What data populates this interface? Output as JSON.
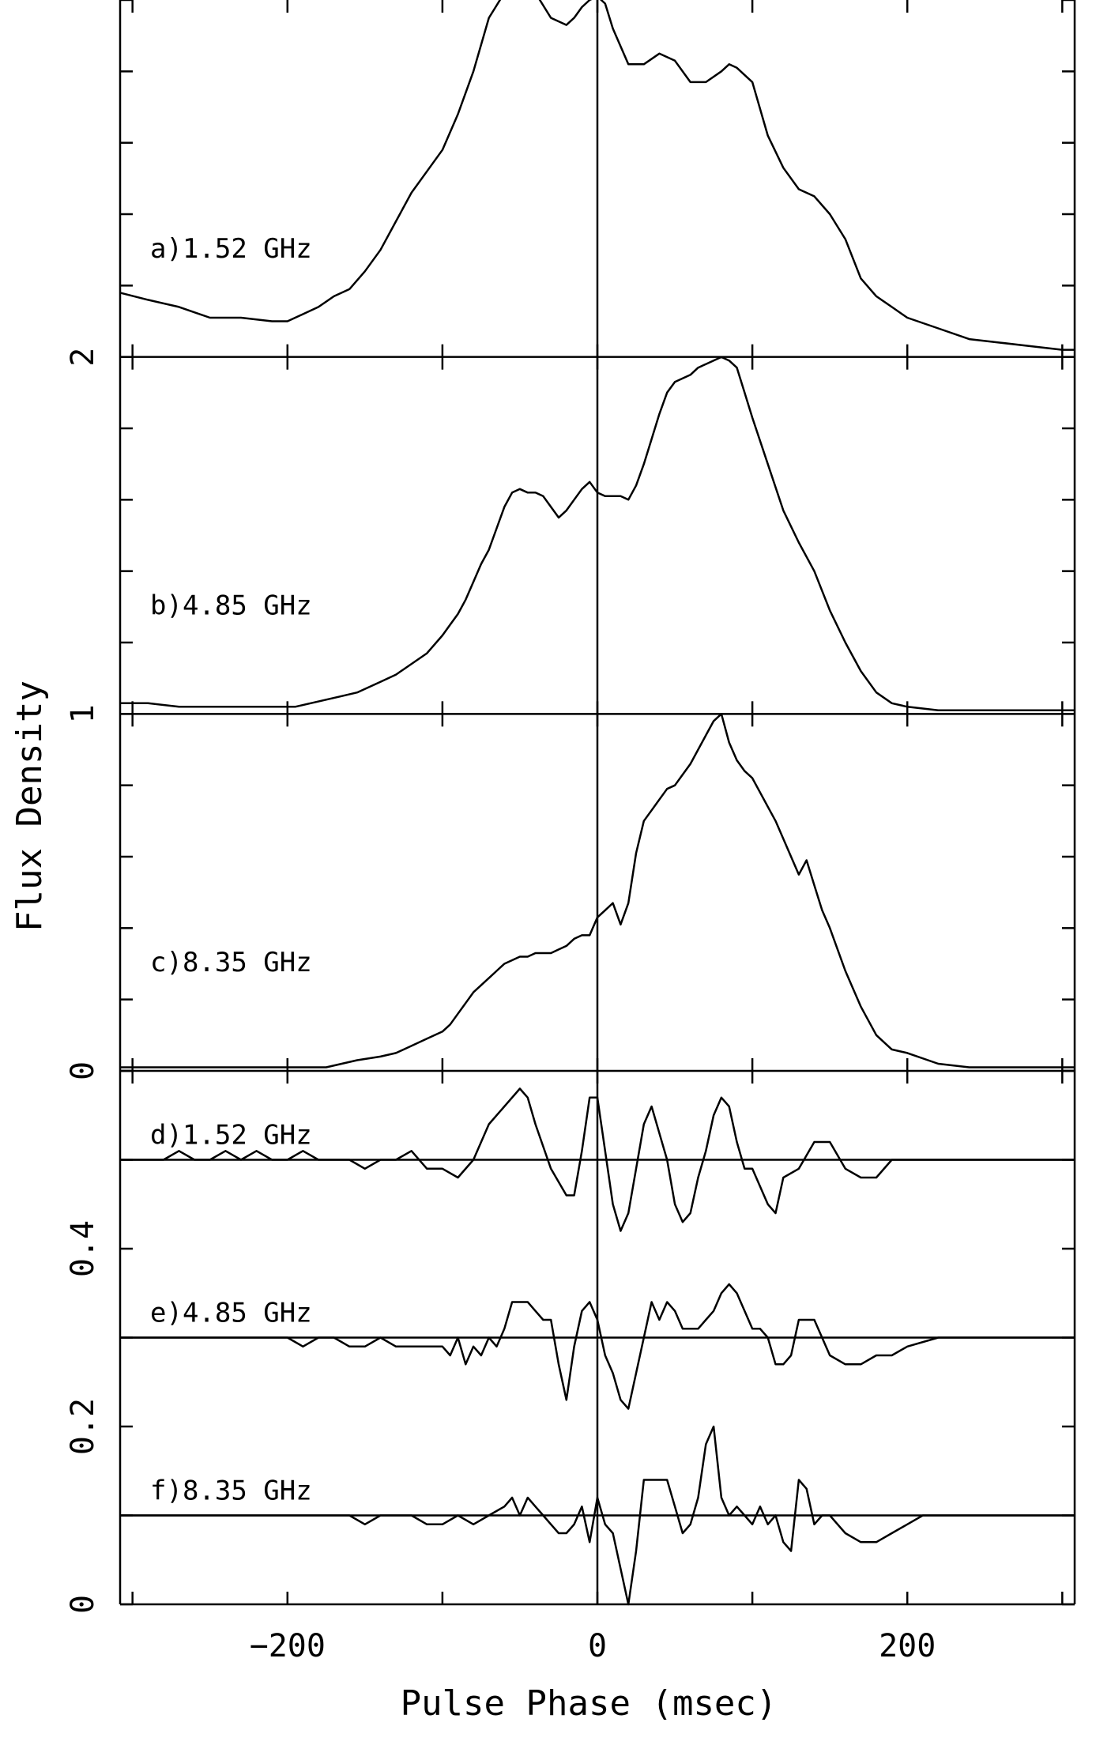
{
  "chart_data": {
    "type": "line",
    "xlabel": "Pulse Phase (msec)",
    "ylabel": "Flux Density",
    "xlim": [
      -308,
      308
    ],
    "x_ticks": [
      -200,
      0,
      200
    ],
    "x_tick_labels": [
      "−200",
      "0",
      "200"
    ],
    "x_minor_step": 100,
    "reference_line_x": 0,
    "upper_ylim": [
      0,
      3
    ],
    "upper_y_ticks": [
      0,
      1,
      2
    ],
    "upper_y_tick_labels": [
      "0",
      "1",
      "2"
    ],
    "lower_ylim": [
      0,
      0.6
    ],
    "lower_y_ticks": [
      0,
      0.2,
      0.4
    ],
    "lower_y_tick_labels": [
      "0",
      "0.2",
      "0.4"
    ],
    "series": [
      {
        "name": "a)1.52 GHz",
        "axis": "upper",
        "baseline": 2,
        "x": [
          -308,
          -290,
          -270,
          -250,
          -230,
          -210,
          -200,
          -190,
          -180,
          -170,
          -160,
          -150,
          -140,
          -130,
          -120,
          -110,
          -100,
          -90,
          -80,
          -70,
          -60,
          -55,
          -50,
          -45,
          -40,
          -30,
          -20,
          -15,
          -10,
          -5,
          0,
          5,
          10,
          20,
          30,
          40,
          50,
          60,
          70,
          80,
          85,
          90,
          100,
          110,
          120,
          130,
          140,
          150,
          160,
          170,
          180,
          190,
          200,
          220,
          240,
          260,
          280,
          300,
          308
        ],
        "y": [
          2.18,
          2.16,
          2.14,
          2.11,
          2.11,
          2.1,
          2.1,
          2.12,
          2.14,
          2.17,
          2.19,
          2.24,
          2.3,
          2.38,
          2.46,
          2.52,
          2.58,
          2.68,
          2.8,
          2.95,
          3.02,
          3.04,
          3.05,
          3.04,
          3.02,
          2.95,
          2.93,
          2.95,
          2.98,
          3.0,
          3.01,
          2.99,
          2.92,
          2.82,
          2.82,
          2.85,
          2.83,
          2.77,
          2.77,
          2.8,
          2.82,
          2.81,
          2.77,
          2.62,
          2.53,
          2.47,
          2.45,
          2.4,
          2.33,
          2.22,
          2.17,
          2.14,
          2.11,
          2.08,
          2.05,
          2.04,
          2.03,
          2.02,
          2.02
        ]
      },
      {
        "name": "b)4.85 GHz",
        "axis": "upper",
        "baseline": 1,
        "x": [
          -308,
          -290,
          -270,
          -250,
          -230,
          -210,
          -195,
          -185,
          -175,
          -165,
          -155,
          -140,
          -130,
          -120,
          -110,
          -100,
          -95,
          -90,
          -85,
          -80,
          -75,
          -70,
          -65,
          -60,
          -55,
          -50,
          -45,
          -40,
          -35,
          -30,
          -25,
          -20,
          -15,
          -10,
          -5,
          0,
          5,
          10,
          15,
          20,
          25,
          30,
          35,
          40,
          45,
          50,
          55,
          60,
          65,
          70,
          75,
          80,
          85,
          90,
          95,
          100,
          110,
          120,
          130,
          140,
          150,
          160,
          170,
          180,
          190,
          200,
          220,
          240,
          260,
          280,
          300,
          308
        ],
        "y": [
          1.03,
          1.03,
          1.02,
          1.02,
          1.02,
          1.02,
          1.02,
          1.03,
          1.04,
          1.05,
          1.06,
          1.09,
          1.11,
          1.14,
          1.17,
          1.22,
          1.25,
          1.28,
          1.32,
          1.37,
          1.42,
          1.46,
          1.52,
          1.58,
          1.62,
          1.63,
          1.62,
          1.62,
          1.61,
          1.58,
          1.55,
          1.57,
          1.6,
          1.63,
          1.65,
          1.62,
          1.61,
          1.61,
          1.61,
          1.6,
          1.64,
          1.7,
          1.77,
          1.84,
          1.9,
          1.93,
          1.94,
          1.95,
          1.97,
          1.98,
          1.99,
          2.0,
          1.99,
          1.97,
          1.9,
          1.83,
          1.7,
          1.57,
          1.48,
          1.4,
          1.29,
          1.2,
          1.12,
          1.06,
          1.03,
          1.02,
          1.01,
          1.01,
          1.01,
          1.01,
          1.01,
          1.01
        ]
      },
      {
        "name": "c)8.35 GHz",
        "axis": "upper",
        "baseline": 0,
        "x": [
          -308,
          -290,
          -270,
          -250,
          -230,
          -210,
          -195,
          -185,
          -175,
          -165,
          -155,
          -140,
          -130,
          -120,
          -110,
          -100,
          -95,
          -90,
          -85,
          -80,
          -75,
          -70,
          -65,
          -60,
          -55,
          -50,
          -45,
          -40,
          -35,
          -30,
          -25,
          -20,
          -15,
          -10,
          -5,
          0,
          5,
          10,
          15,
          20,
          25,
          30,
          35,
          40,
          45,
          50,
          55,
          60,
          65,
          70,
          75,
          80,
          85,
          90,
          95,
          100,
          105,
          110,
          115,
          120,
          125,
          130,
          135,
          140,
          145,
          150,
          155,
          160,
          165,
          170,
          180,
          190,
          200,
          220,
          240,
          260,
          280,
          300,
          308
        ],
        "y": [
          0.01,
          0.01,
          0.01,
          0.01,
          0.01,
          0.01,
          0.01,
          0.01,
          0.01,
          0.02,
          0.03,
          0.04,
          0.05,
          0.07,
          0.09,
          0.11,
          0.13,
          0.16,
          0.19,
          0.22,
          0.24,
          0.26,
          0.28,
          0.3,
          0.31,
          0.32,
          0.32,
          0.33,
          0.33,
          0.33,
          0.34,
          0.35,
          0.37,
          0.38,
          0.38,
          0.43,
          0.45,
          0.47,
          0.41,
          0.47,
          0.61,
          0.7,
          0.73,
          0.76,
          0.79,
          0.8,
          0.83,
          0.86,
          0.9,
          0.94,
          0.98,
          1.0,
          0.92,
          0.87,
          0.84,
          0.82,
          0.78,
          0.74,
          0.7,
          0.65,
          0.6,
          0.55,
          0.59,
          0.52,
          0.45,
          0.4,
          0.34,
          0.28,
          0.23,
          0.18,
          0.1,
          0.06,
          0.05,
          0.02,
          0.01,
          0.01,
          0.01,
          0.01,
          0.01
        ]
      },
      {
        "name": "d)1.52 GHz",
        "axis": "lower",
        "baseline": 0.5,
        "x": [
          -308,
          -300,
          -290,
          -280,
          -270,
          -260,
          -250,
          -240,
          -230,
          -220,
          -210,
          -200,
          -190,
          -180,
          -170,
          -160,
          -150,
          -140,
          -130,
          -120,
          -110,
          -100,
          -90,
          -80,
          -70,
          -60,
          -50,
          -45,
          -40,
          -30,
          -20,
          -15,
          -10,
          -5,
          0,
          5,
          10,
          15,
          20,
          25,
          30,
          35,
          40,
          45,
          50,
          55,
          60,
          65,
          70,
          75,
          80,
          85,
          90,
          95,
          100,
          105,
          110,
          115,
          120,
          130,
          140,
          150,
          160,
          170,
          180,
          190,
          200,
          210,
          220,
          240,
          260,
          280,
          300,
          308
        ],
        "y": [
          0.5,
          0.5,
          0.5,
          0.5,
          0.51,
          0.5,
          0.5,
          0.51,
          0.5,
          0.51,
          0.5,
          0.5,
          0.51,
          0.5,
          0.5,
          0.5,
          0.49,
          0.5,
          0.5,
          0.51,
          0.49,
          0.49,
          0.48,
          0.5,
          0.54,
          0.56,
          0.58,
          0.57,
          0.54,
          0.49,
          0.46,
          0.46,
          0.51,
          0.57,
          0.57,
          0.51,
          0.45,
          0.42,
          0.44,
          0.49,
          0.54,
          0.56,
          0.53,
          0.5,
          0.45,
          0.43,
          0.44,
          0.48,
          0.51,
          0.55,
          0.57,
          0.56,
          0.52,
          0.49,
          0.49,
          0.47,
          0.45,
          0.44,
          0.48,
          0.49,
          0.52,
          0.52,
          0.49,
          0.48,
          0.48,
          0.5,
          0.5,
          0.5,
          0.5,
          0.5,
          0.5,
          0.5,
          0.5,
          0.5
        ]
      },
      {
        "name": "e)4.85 GHz",
        "axis": "lower",
        "baseline": 0.3,
        "x": [
          -308,
          -300,
          -290,
          -280,
          -270,
          -260,
          -250,
          -240,
          -230,
          -220,
          -210,
          -200,
          -190,
          -180,
          -170,
          -160,
          -150,
          -140,
          -130,
          -120,
          -110,
          -100,
          -95,
          -90,
          -85,
          -80,
          -75,
          -70,
          -65,
          -60,
          -55,
          -50,
          -45,
          -40,
          -35,
          -30,
          -25,
          -20,
          -15,
          -10,
          -5,
          0,
          5,
          10,
          15,
          20,
          25,
          30,
          35,
          40,
          45,
          50,
          55,
          60,
          65,
          70,
          75,
          80,
          85,
          90,
          95,
          100,
          105,
          110,
          115,
          120,
          125,
          130,
          135,
          140,
          150,
          160,
          170,
          180,
          190,
          200,
          220,
          240,
          260,
          280,
          300,
          308
        ],
        "y": [
          0.3,
          0.3,
          0.3,
          0.3,
          0.3,
          0.3,
          0.3,
          0.3,
          0.3,
          0.3,
          0.3,
          0.3,
          0.29,
          0.3,
          0.3,
          0.29,
          0.29,
          0.3,
          0.29,
          0.29,
          0.29,
          0.29,
          0.28,
          0.3,
          0.27,
          0.29,
          0.28,
          0.3,
          0.29,
          0.31,
          0.34,
          0.34,
          0.34,
          0.33,
          0.32,
          0.32,
          0.27,
          0.23,
          0.29,
          0.33,
          0.34,
          0.32,
          0.28,
          0.26,
          0.23,
          0.22,
          0.26,
          0.3,
          0.34,
          0.32,
          0.34,
          0.33,
          0.31,
          0.31,
          0.31,
          0.32,
          0.33,
          0.35,
          0.36,
          0.35,
          0.33,
          0.31,
          0.31,
          0.3,
          0.27,
          0.27,
          0.28,
          0.32,
          0.32,
          0.32,
          0.28,
          0.27,
          0.27,
          0.28,
          0.28,
          0.29,
          0.3,
          0.3,
          0.3,
          0.3,
          0.3,
          0.3
        ]
      },
      {
        "name": "f)8.35 GHz",
        "axis": "lower",
        "baseline": 0.1,
        "x": [
          -308,
          -300,
          -290,
          -280,
          -270,
          -260,
          -250,
          -240,
          -230,
          -220,
          -210,
          -200,
          -190,
          -180,
          -170,
          -160,
          -150,
          -140,
          -130,
          -120,
          -110,
          -100,
          -90,
          -80,
          -70,
          -60,
          -55,
          -50,
          -45,
          -40,
          -35,
          -30,
          -25,
          -20,
          -15,
          -10,
          -5,
          0,
          5,
          10,
          15,
          20,
          25,
          30,
          35,
          40,
          45,
          50,
          55,
          60,
          65,
          70,
          75,
          80,
          85,
          90,
          95,
          100,
          105,
          110,
          115,
          120,
          125,
          130,
          135,
          140,
          145,
          150,
          155,
          160,
          170,
          180,
          190,
          200,
          210,
          220,
          240,
          260,
          280,
          300,
          308
        ],
        "y": [
          0.1,
          0.1,
          0.1,
          0.1,
          0.1,
          0.1,
          0.1,
          0.1,
          0.1,
          0.1,
          0.1,
          0.1,
          0.1,
          0.1,
          0.1,
          0.1,
          0.09,
          0.1,
          0.1,
          0.1,
          0.09,
          0.09,
          0.1,
          0.09,
          0.1,
          0.11,
          0.12,
          0.1,
          0.12,
          0.11,
          0.1,
          0.09,
          0.08,
          0.08,
          0.09,
          0.11,
          0.07,
          0.12,
          0.09,
          0.08,
          0.04,
          -0.01,
          0.06,
          0.14,
          0.14,
          0.14,
          0.14,
          0.11,
          0.08,
          0.09,
          0.12,
          0.18,
          0.2,
          0.12,
          0.1,
          0.11,
          0.1,
          0.09,
          0.11,
          0.09,
          0.1,
          0.07,
          0.06,
          0.14,
          0.13,
          0.09,
          0.1,
          0.1,
          0.09,
          0.08,
          0.07,
          0.07,
          0.08,
          0.09,
          0.1,
          0.1,
          0.1,
          0.1,
          0.1,
          0.1,
          0.1
        ]
      }
    ]
  }
}
